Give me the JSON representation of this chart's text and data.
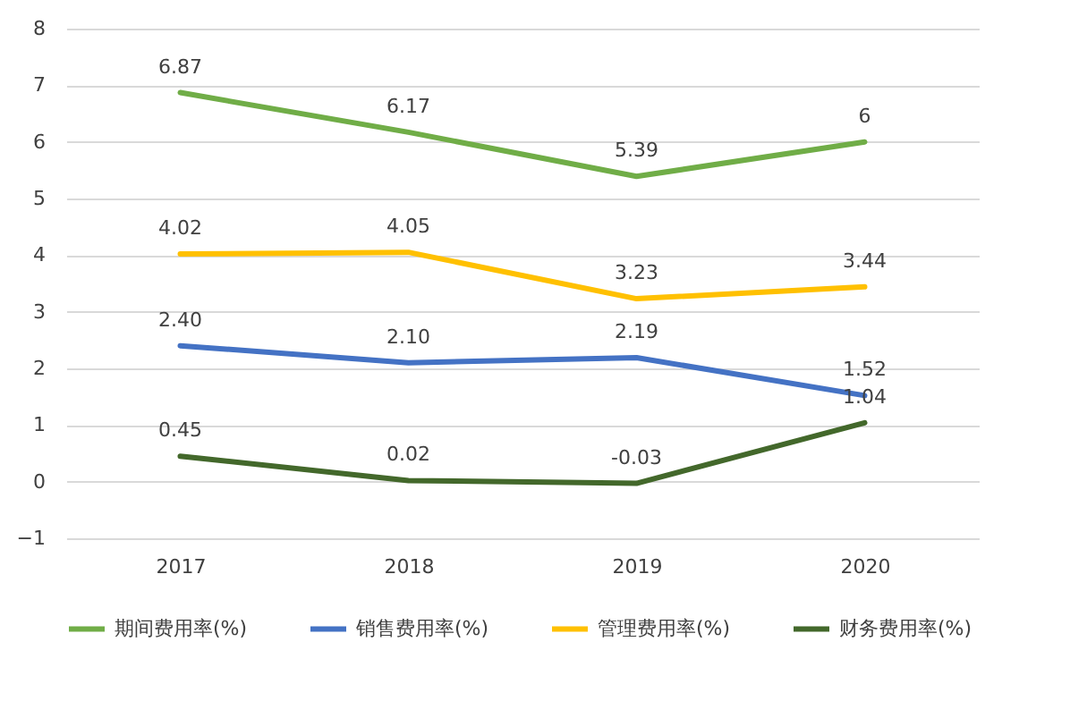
{
  "chart_data": {
    "type": "line",
    "categories": [
      "2017",
      "2018",
      "2019",
      "2020"
    ],
    "ylim": [
      -1,
      8
    ],
    "yticks": [
      -1,
      0,
      1,
      2,
      3,
      4,
      5,
      6,
      7,
      8
    ],
    "grid": "y",
    "legend": "bottom",
    "marker": "none",
    "line_style": "solid",
    "series": [
      {
        "name": "期间费用率(%)",
        "color": "#70ad47",
        "values": [
          6.87,
          6.17,
          5.39,
          6
        ],
        "value_labels": [
          "6.87",
          "6.17",
          "5.39",
          "6"
        ]
      },
      {
        "name": "销售费用率(%)",
        "color": "#4472c4",
        "values": [
          2.4,
          2.1,
          2.19,
          1.52
        ],
        "value_labels": [
          "2.40",
          "2.10",
          "2.19",
          "1.52"
        ]
      },
      {
        "name": "管理费用率(%)",
        "color": "#ffc000",
        "values": [
          4.02,
          4.05,
          3.23,
          3.44
        ],
        "value_labels": [
          "4.02",
          "4.05",
          "3.23",
          "3.44"
        ]
      },
      {
        "name": "财务费用率(%)",
        "color": "#43682b",
        "values": [
          0.45,
          0.02,
          -0.03,
          1.04
        ],
        "value_labels": [
          "0.45",
          "0.02",
          "-0.03",
          "1.04"
        ]
      }
    ]
  }
}
